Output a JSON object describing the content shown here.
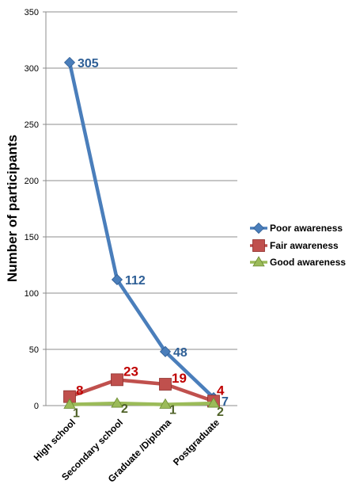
{
  "chart_data": {
    "type": "line",
    "title": "",
    "xlabel": "",
    "ylabel": "Number of participants",
    "categories": [
      "High school",
      "Secondary school",
      "Graduate /Diploma",
      "Postgraduate"
    ],
    "ylim": [
      0,
      350
    ],
    "yticks": [
      0,
      50,
      100,
      150,
      200,
      250,
      300,
      350
    ],
    "grid": "horizontal",
    "legend_position": "right",
    "series": [
      {
        "name": "Poor awareness",
        "values": [
          305,
          112,
          48,
          7
        ],
        "color": "#4a7ebb",
        "marker": "diamond",
        "label_color": "#2e5f96"
      },
      {
        "name": "Fair awareness",
        "values": [
          8,
          23,
          19,
          4
        ],
        "color": "#c0504d",
        "marker": "square",
        "label_color": "#c00000"
      },
      {
        "name": "Good awareness",
        "values": [
          1,
          2,
          1,
          2
        ],
        "color": "#9bbb59",
        "marker": "triangle",
        "label_color": "#4f6228"
      }
    ]
  }
}
